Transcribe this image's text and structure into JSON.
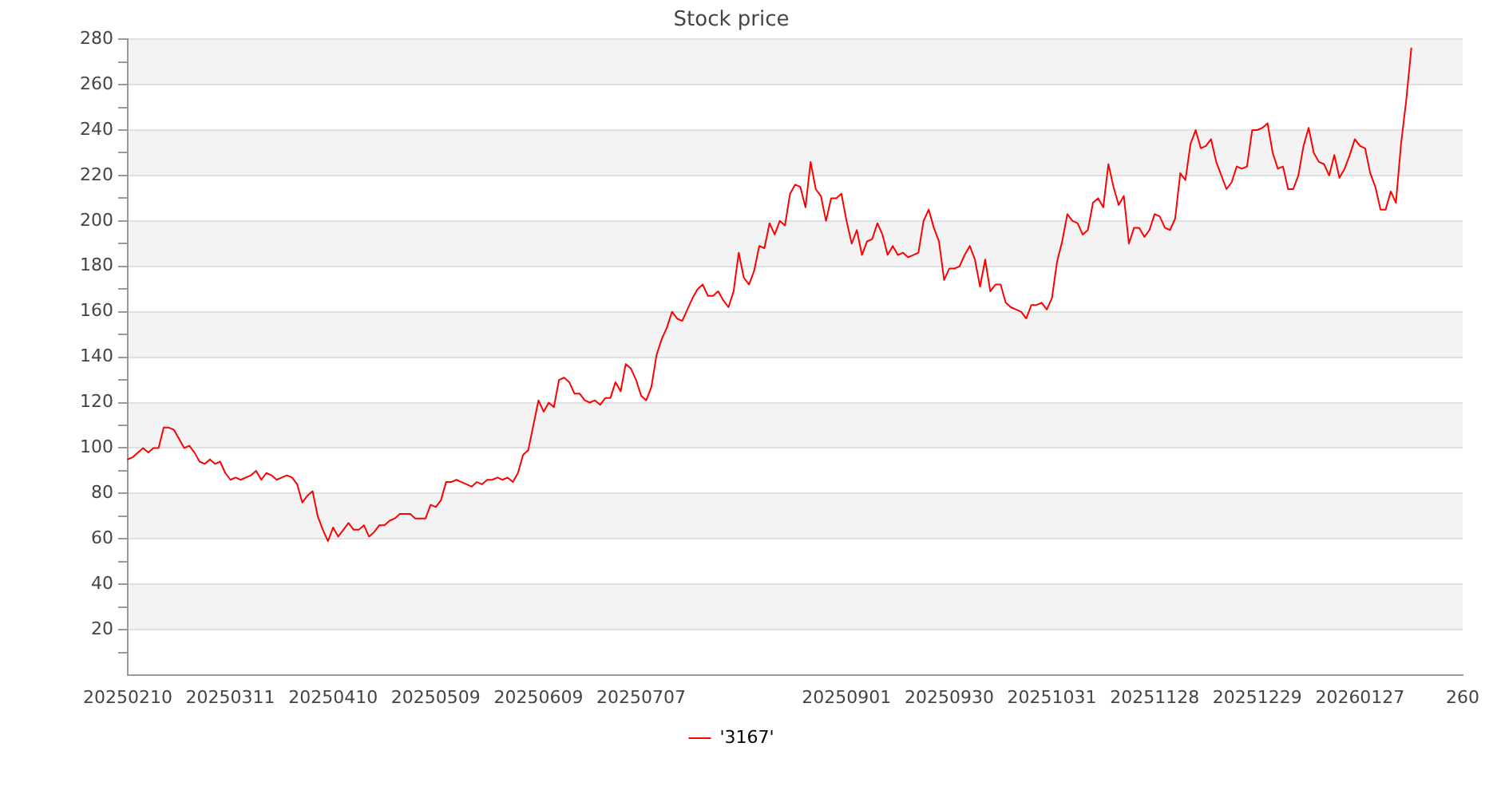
{
  "chart_data": {
    "type": "line",
    "title": "Stock price",
    "categories": [
      "20250210",
      null,
      null,
      null,
      null,
      null,
      null,
      null,
      null,
      null,
      null,
      null,
      null,
      null,
      null,
      null,
      null,
      null,
      null,
      null,
      "20250311",
      null,
      null,
      null,
      null,
      null,
      null,
      null,
      null,
      null,
      null,
      null,
      null,
      null,
      null,
      null,
      null,
      null,
      null,
      null,
      "20250410",
      null,
      null,
      null,
      null,
      null,
      null,
      null,
      null,
      null,
      null,
      null,
      null,
      null,
      null,
      null,
      null,
      null,
      null,
      null,
      "20250509",
      null,
      null,
      null,
      null,
      null,
      null,
      null,
      null,
      null,
      null,
      null,
      null,
      null,
      null,
      null,
      null,
      null,
      null,
      null,
      "20250609",
      null,
      null,
      null,
      null,
      null,
      null,
      null,
      null,
      null,
      null,
      null,
      null,
      null,
      null,
      null,
      null,
      null,
      null,
      null,
      "20250707",
      null,
      null,
      null,
      null,
      null,
      null,
      null,
      null,
      null,
      null,
      null,
      null,
      null,
      null,
      null,
      null,
      null,
      null,
      null,
      null,
      null,
      null,
      null,
      null,
      null,
      null,
      null,
      null,
      null,
      null,
      null,
      null,
      null,
      null,
      null,
      null,
      null,
      null,
      null,
      "20250901",
      null,
      null,
      null,
      null,
      null,
      null,
      null,
      null,
      null,
      null,
      null,
      null,
      null,
      null,
      null,
      null,
      null,
      null,
      null,
      "20250930",
      null,
      null,
      null,
      null,
      null,
      null,
      null,
      null,
      null,
      null,
      null,
      null,
      null,
      null,
      null,
      null,
      null,
      null,
      null,
      "20251031",
      null,
      null,
      null,
      null,
      null,
      null,
      null,
      null,
      null,
      null,
      null,
      null,
      null,
      null,
      null,
      null,
      null,
      null,
      null,
      "20251128",
      null,
      null,
      null,
      null,
      null,
      null,
      null,
      null,
      null,
      null,
      null,
      null,
      null,
      null,
      null,
      null,
      null,
      null,
      null,
      "20251229",
      null,
      null,
      null,
      null,
      null,
      null,
      null,
      null,
      null,
      null,
      null,
      null,
      null,
      null,
      null,
      null,
      null,
      null,
      null,
      "20260127",
      null,
      null,
      null,
      null,
      null,
      null,
      null,
      null,
      null,
      null,
      null,
      null,
      null,
      null,
      null,
      null,
      null,
      null,
      null,
      "260"
    ],
    "series": [
      {
        "name": "'3167'",
        "color": "#ff0000",
        "values": [
          95,
          96,
          98,
          100,
          98,
          100,
          100,
          109,
          109,
          108,
          104,
          100,
          101,
          98,
          94,
          93,
          95,
          93,
          94,
          89,
          86,
          87,
          86,
          87,
          88,
          90,
          86,
          89,
          88,
          86,
          87,
          88,
          87,
          84,
          76,
          79,
          81,
          70,
          64,
          59,
          65,
          61,
          64,
          67,
          64,
          64,
          66,
          61,
          63,
          66,
          66,
          68,
          69,
          71,
          71,
          71,
          69,
          69,
          69,
          75,
          74,
          77,
          85,
          85,
          86,
          85,
          84,
          83,
          85,
          84,
          86,
          86,
          87,
          86,
          87,
          85,
          89,
          97,
          99,
          110,
          121,
          116,
          120,
          118,
          130,
          131,
          129,
          124,
          124,
          121,
          120,
          121,
          119,
          122,
          122,
          129,
          125,
          137,
          135,
          130,
          123,
          121,
          127,
          141,
          148,
          153,
          160,
          157,
          156,
          161,
          166,
          170,
          172,
          167,
          167,
          169,
          165,
          162,
          169,
          186,
          175,
          172,
          178,
          189,
          188,
          199,
          194,
          200,
          198,
          212,
          216,
          215,
          206,
          226,
          214,
          211,
          200,
          210,
          210,
          212,
          200,
          190,
          196,
          185,
          191,
          192,
          199,
          194,
          185,
          189,
          185,
          186,
          184,
          185,
          186,
          200,
          205,
          197,
          191,
          174,
          179,
          179,
          180,
          185,
          189,
          183,
          171,
          183,
          169,
          172,
          172,
          164,
          162,
          161,
          160,
          157,
          163,
          163,
          164,
          161,
          166,
          182,
          191,
          203,
          200,
          199,
          194,
          196,
          208,
          210,
          206,
          225,
          215,
          207,
          211,
          190,
          197,
          197,
          193,
          196,
          203,
          202,
          197,
          196,
          201,
          221,
          218,
          234,
          240,
          232,
          233,
          236,
          226,
          220,
          214,
          217,
          224,
          223,
          224,
          240,
          240,
          241,
          243,
          230,
          223,
          224,
          214,
          214,
          220,
          233,
          241,
          230,
          226,
          225,
          220,
          229,
          219,
          223,
          229,
          236,
          233,
          232,
          221,
          215,
          205,
          205,
          213,
          208,
          234,
          253,
          276,
          null,
          null,
          null,
          null,
          null,
          null,
          null,
          null,
          null,
          null
        ]
      }
    ],
    "ylim": [
      0,
      280
    ],
    "yticks": [
      {
        "value": 10,
        "label": null
      },
      20,
      {
        "value": 30,
        "label": null
      },
      40,
      {
        "value": 50,
        "label": null
      },
      60,
      {
        "value": 70,
        "label": null
      },
      80,
      {
        "value": 90,
        "label": null
      },
      100,
      {
        "value": 110,
        "label": null
      },
      120,
      {
        "value": 130,
        "label": null
      },
      140,
      {
        "value": 150,
        "label": null
      },
      160,
      {
        "value": 170,
        "label": null
      },
      180,
      {
        "value": 190,
        "label": null
      },
      200,
      {
        "value": 210,
        "label": null
      },
      220,
      {
        "value": 230,
        "label": null
      },
      240,
      {
        "value": 250,
        "label": null
      },
      260,
      {
        "value": 270,
        "label": null
      },
      280
    ],
    "grid": "y",
    "legend": "bottom"
  }
}
